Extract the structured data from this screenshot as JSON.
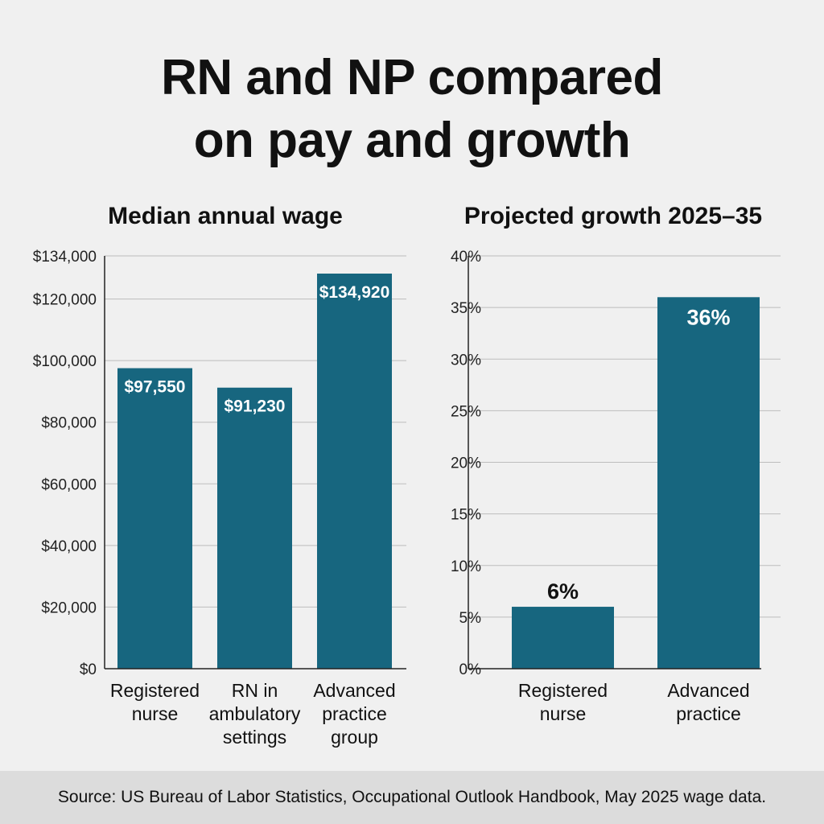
{
  "title_lines": [
    "RN and NP compared",
    "on pay and growth"
  ],
  "footer": {
    "source": "Source: US Bureau of Labor Statistics, Occupational Outlook Handbook, May 2025 wage data."
  },
  "colors": {
    "bar": "#17667f",
    "grid": "#bdbdbd",
    "axis": "#222222",
    "label_inside": "#ffffff",
    "label_outside": "#111111"
  },
  "chart_data": [
    {
      "type": "bar",
      "title": "Median annual wage",
      "categories": [
        [
          "Registered",
          "nurse"
        ],
        [
          "RN in",
          "ambulatory",
          "settings"
        ],
        [
          "Advanced",
          "practice",
          "group"
        ]
      ],
      "values": [
        97550,
        91230,
        134920
      ],
      "value_labels": [
        "$97,550",
        "$91,230",
        "$134,920"
      ],
      "ylim": [
        0,
        134000
      ],
      "yticks": [
        0,
        20000,
        40000,
        60000,
        80000,
        100000,
        120000,
        134000
      ],
      "ytick_labels": [
        "$0",
        "$20,000",
        "$40,000",
        "$60,000",
        "$80,000",
        "$100,000",
        "$120,000",
        "$134,000"
      ],
      "grid": true
    },
    {
      "type": "bar",
      "title": "Projected growth 2025–35",
      "categories": [
        [
          "Registered",
          "nurse"
        ],
        [
          "Advanced",
          "practice"
        ]
      ],
      "values": [
        6,
        36
      ],
      "value_labels": [
        "6%",
        "36%"
      ],
      "ylim": [
        0,
        40
      ],
      "yticks": [
        0,
        5,
        10,
        15,
        20,
        25,
        30,
        35,
        40
      ],
      "ytick_labels": [
        "0%",
        "5%",
        "10%",
        "15%",
        "20%",
        "25%",
        "30%",
        "35%",
        "40%"
      ],
      "grid": true
    }
  ]
}
